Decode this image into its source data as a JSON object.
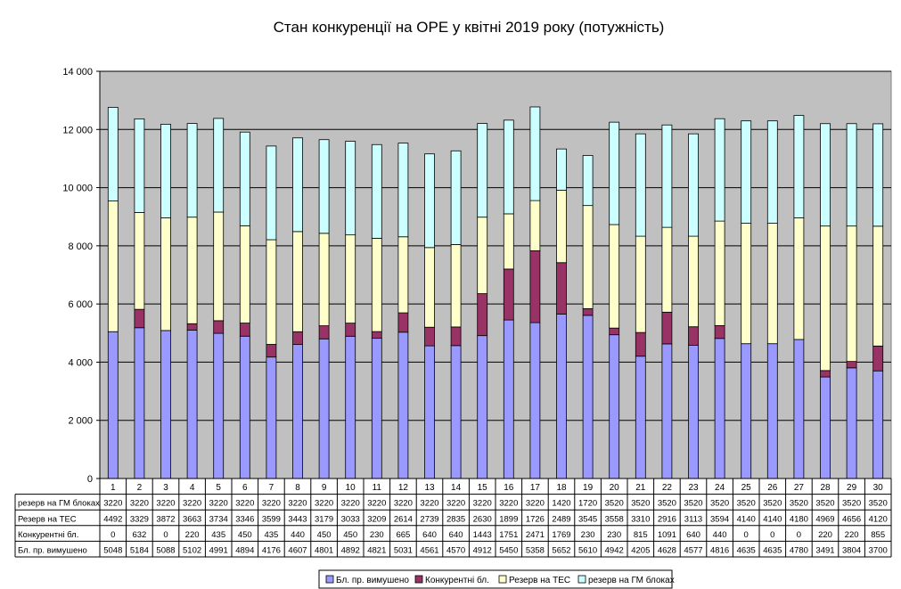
{
  "chart_data": {
    "type": "bar",
    "stacked": true,
    "title": "Стан конкуренції на ОРЕ  у квітні 2019 року (потужність)",
    "xlabel": "",
    "ylabel": "",
    "ylim": [
      0,
      14000
    ],
    "yticks": [
      "0",
      "2 000",
      "4 000",
      "6 000",
      "8 000",
      "10 000",
      "12 000",
      "14 000"
    ],
    "grid": true,
    "legend_position": "bottom",
    "plot_background": "#c0c0c0",
    "categories": [
      "1",
      "2",
      "3",
      "4",
      "5",
      "6",
      "7",
      "8",
      "9",
      "10",
      "11",
      "12",
      "13",
      "14",
      "15",
      "16",
      "17",
      "18",
      "19",
      "20",
      "21",
      "22",
      "23",
      "24",
      "25",
      "26",
      "27",
      "28",
      "29",
      "30"
    ],
    "series": [
      {
        "name": "Бл. пр. вимушено",
        "color": "#9999ff",
        "values": [
          5048,
          5184,
          5088,
          5102,
          4991,
          4894,
          4176,
          4607,
          4801,
          4892,
          4821,
          5031,
          4561,
          4570,
          4912,
          5450,
          5358,
          5652,
          5610,
          4942,
          4205,
          4628,
          4577,
          4816,
          4635,
          4635,
          4780,
          3491,
          3804,
          3700
        ]
      },
      {
        "name": "Конкурентні бл.",
        "color": "#993366",
        "values": [
          0,
          632,
          0,
          220,
          435,
          450,
          435,
          440,
          450,
          450,
          230,
          665,
          640,
          640,
          1443,
          1751,
          2471,
          1769,
          230,
          230,
          815,
          1091,
          640,
          440,
          0,
          0,
          0,
          220,
          220,
          855
        ]
      },
      {
        "name": "Резерв на ТЕС",
        "color": "#ffffcc",
        "values": [
          4492,
          3329,
          3872,
          3663,
          3734,
          3346,
          3599,
          3443,
          3179,
          3033,
          3209,
          2614,
          2739,
          2835,
          2630,
          1899,
          1726,
          2489,
          3545,
          3558,
          3310,
          2916,
          3113,
          3594,
          4140,
          4140,
          4180,
          4969,
          4656,
          4120
        ]
      },
      {
        "name": "резерв на ГМ блоках",
        "color": "#ccffff",
        "values": [
          3220,
          3220,
          3220,
          3220,
          3220,
          3220,
          3220,
          3220,
          3220,
          3220,
          3220,
          3220,
          3220,
          3220,
          3220,
          3220,
          3220,
          1420,
          1720,
          3520,
          3520,
          3520,
          3520,
          3520,
          3520,
          3520,
          3520,
          3520,
          3520,
          3520
        ]
      }
    ],
    "table_rows": [
      {
        "label": "резерв на ГМ блоках",
        "series": 3
      },
      {
        "label": "Резерв на ТЕС",
        "series": 2
      },
      {
        "label": "Конкурентні бл.",
        "series": 1
      },
      {
        "label": "Бл. пр. вимушено",
        "series": 0
      }
    ]
  }
}
